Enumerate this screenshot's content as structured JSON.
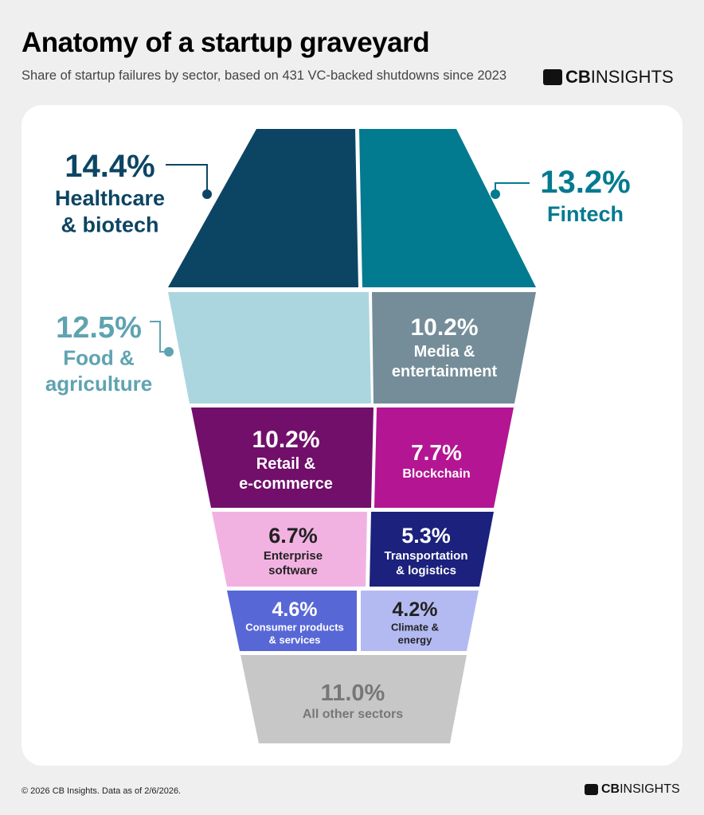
{
  "header": {
    "title": "Anatomy of a startup graveyard",
    "subtitle": "Share of startup failures by sector, based on 431 VC-backed shutdowns since 2023"
  },
  "logo": {
    "bold": "CB",
    "light": "INSIGHTS"
  },
  "footer": {
    "text": "© 2026 CB Insights. Data as of 2/6/2026."
  },
  "chart_data": {
    "type": "treemap-coffin",
    "unit": "%",
    "segments": [
      {
        "label": "Healthcare & biotech",
        "lines": [
          "Healthcare",
          "& biotech"
        ],
        "value": 14.4,
        "value_label": "14.4%",
        "color": "#0c4563",
        "text_color": "#0c4563",
        "label_position": "outside-left"
      },
      {
        "label": "Fintech",
        "lines": [
          "Fintech"
        ],
        "value": 13.2,
        "value_label": "13.2%",
        "color": "#027a8f",
        "text_color": "#027a8f",
        "label_position": "outside-right"
      },
      {
        "label": "Food & agriculture",
        "lines": [
          "Food &",
          "agriculture"
        ],
        "value": 12.5,
        "value_label": "12.5%",
        "color": "#abd6df",
        "text_color": "#5fa3b1",
        "label_position": "outside-left"
      },
      {
        "label": "Media & entertainment",
        "lines": [
          "Media &",
          "entertainment"
        ],
        "value": 10.2,
        "value_label": "10.2%",
        "color": "#748d99",
        "text_color": "#ffffff",
        "label_position": "inside"
      },
      {
        "label": "Retail & e-commerce",
        "lines": [
          "Retail &",
          "e-commerce"
        ],
        "value": 10.2,
        "value_label": "10.2%",
        "color": "#710f6b",
        "text_color": "#ffffff",
        "label_position": "inside"
      },
      {
        "label": "Blockchain",
        "lines": [
          "Blockchain"
        ],
        "value": 7.7,
        "value_label": "7.7%",
        "color": "#b41593",
        "text_color": "#ffffff",
        "label_position": "inside"
      },
      {
        "label": "Enterprise software",
        "lines": [
          "Enterprise",
          "software"
        ],
        "value": 6.7,
        "value_label": "6.7%",
        "color": "#f2b2e1",
        "text_color": "#222222",
        "label_position": "inside"
      },
      {
        "label": "Transportation & logistics",
        "lines": [
          "Transportation",
          "& logistics"
        ],
        "value": 5.3,
        "value_label": "5.3%",
        "color": "#1b217c",
        "text_color": "#ffffff",
        "label_position": "inside"
      },
      {
        "label": "Consumer products & services",
        "lines": [
          "Consumer products",
          "& services"
        ],
        "value": 4.6,
        "value_label": "4.6%",
        "color": "#5867d6",
        "text_color": "#ffffff",
        "label_position": "inside"
      },
      {
        "label": "Climate & energy",
        "lines": [
          "Climate &",
          "energy"
        ],
        "value": 4.2,
        "value_label": "4.2%",
        "color": "#b3baf2",
        "text_color": "#222222",
        "label_position": "inside"
      },
      {
        "label": "All other sectors",
        "lines": [
          "All other sectors"
        ],
        "value": 11.0,
        "value_label": "11.0%",
        "color": "#c7c7c7",
        "text_color": "#777777",
        "label_position": "inside"
      }
    ]
  }
}
